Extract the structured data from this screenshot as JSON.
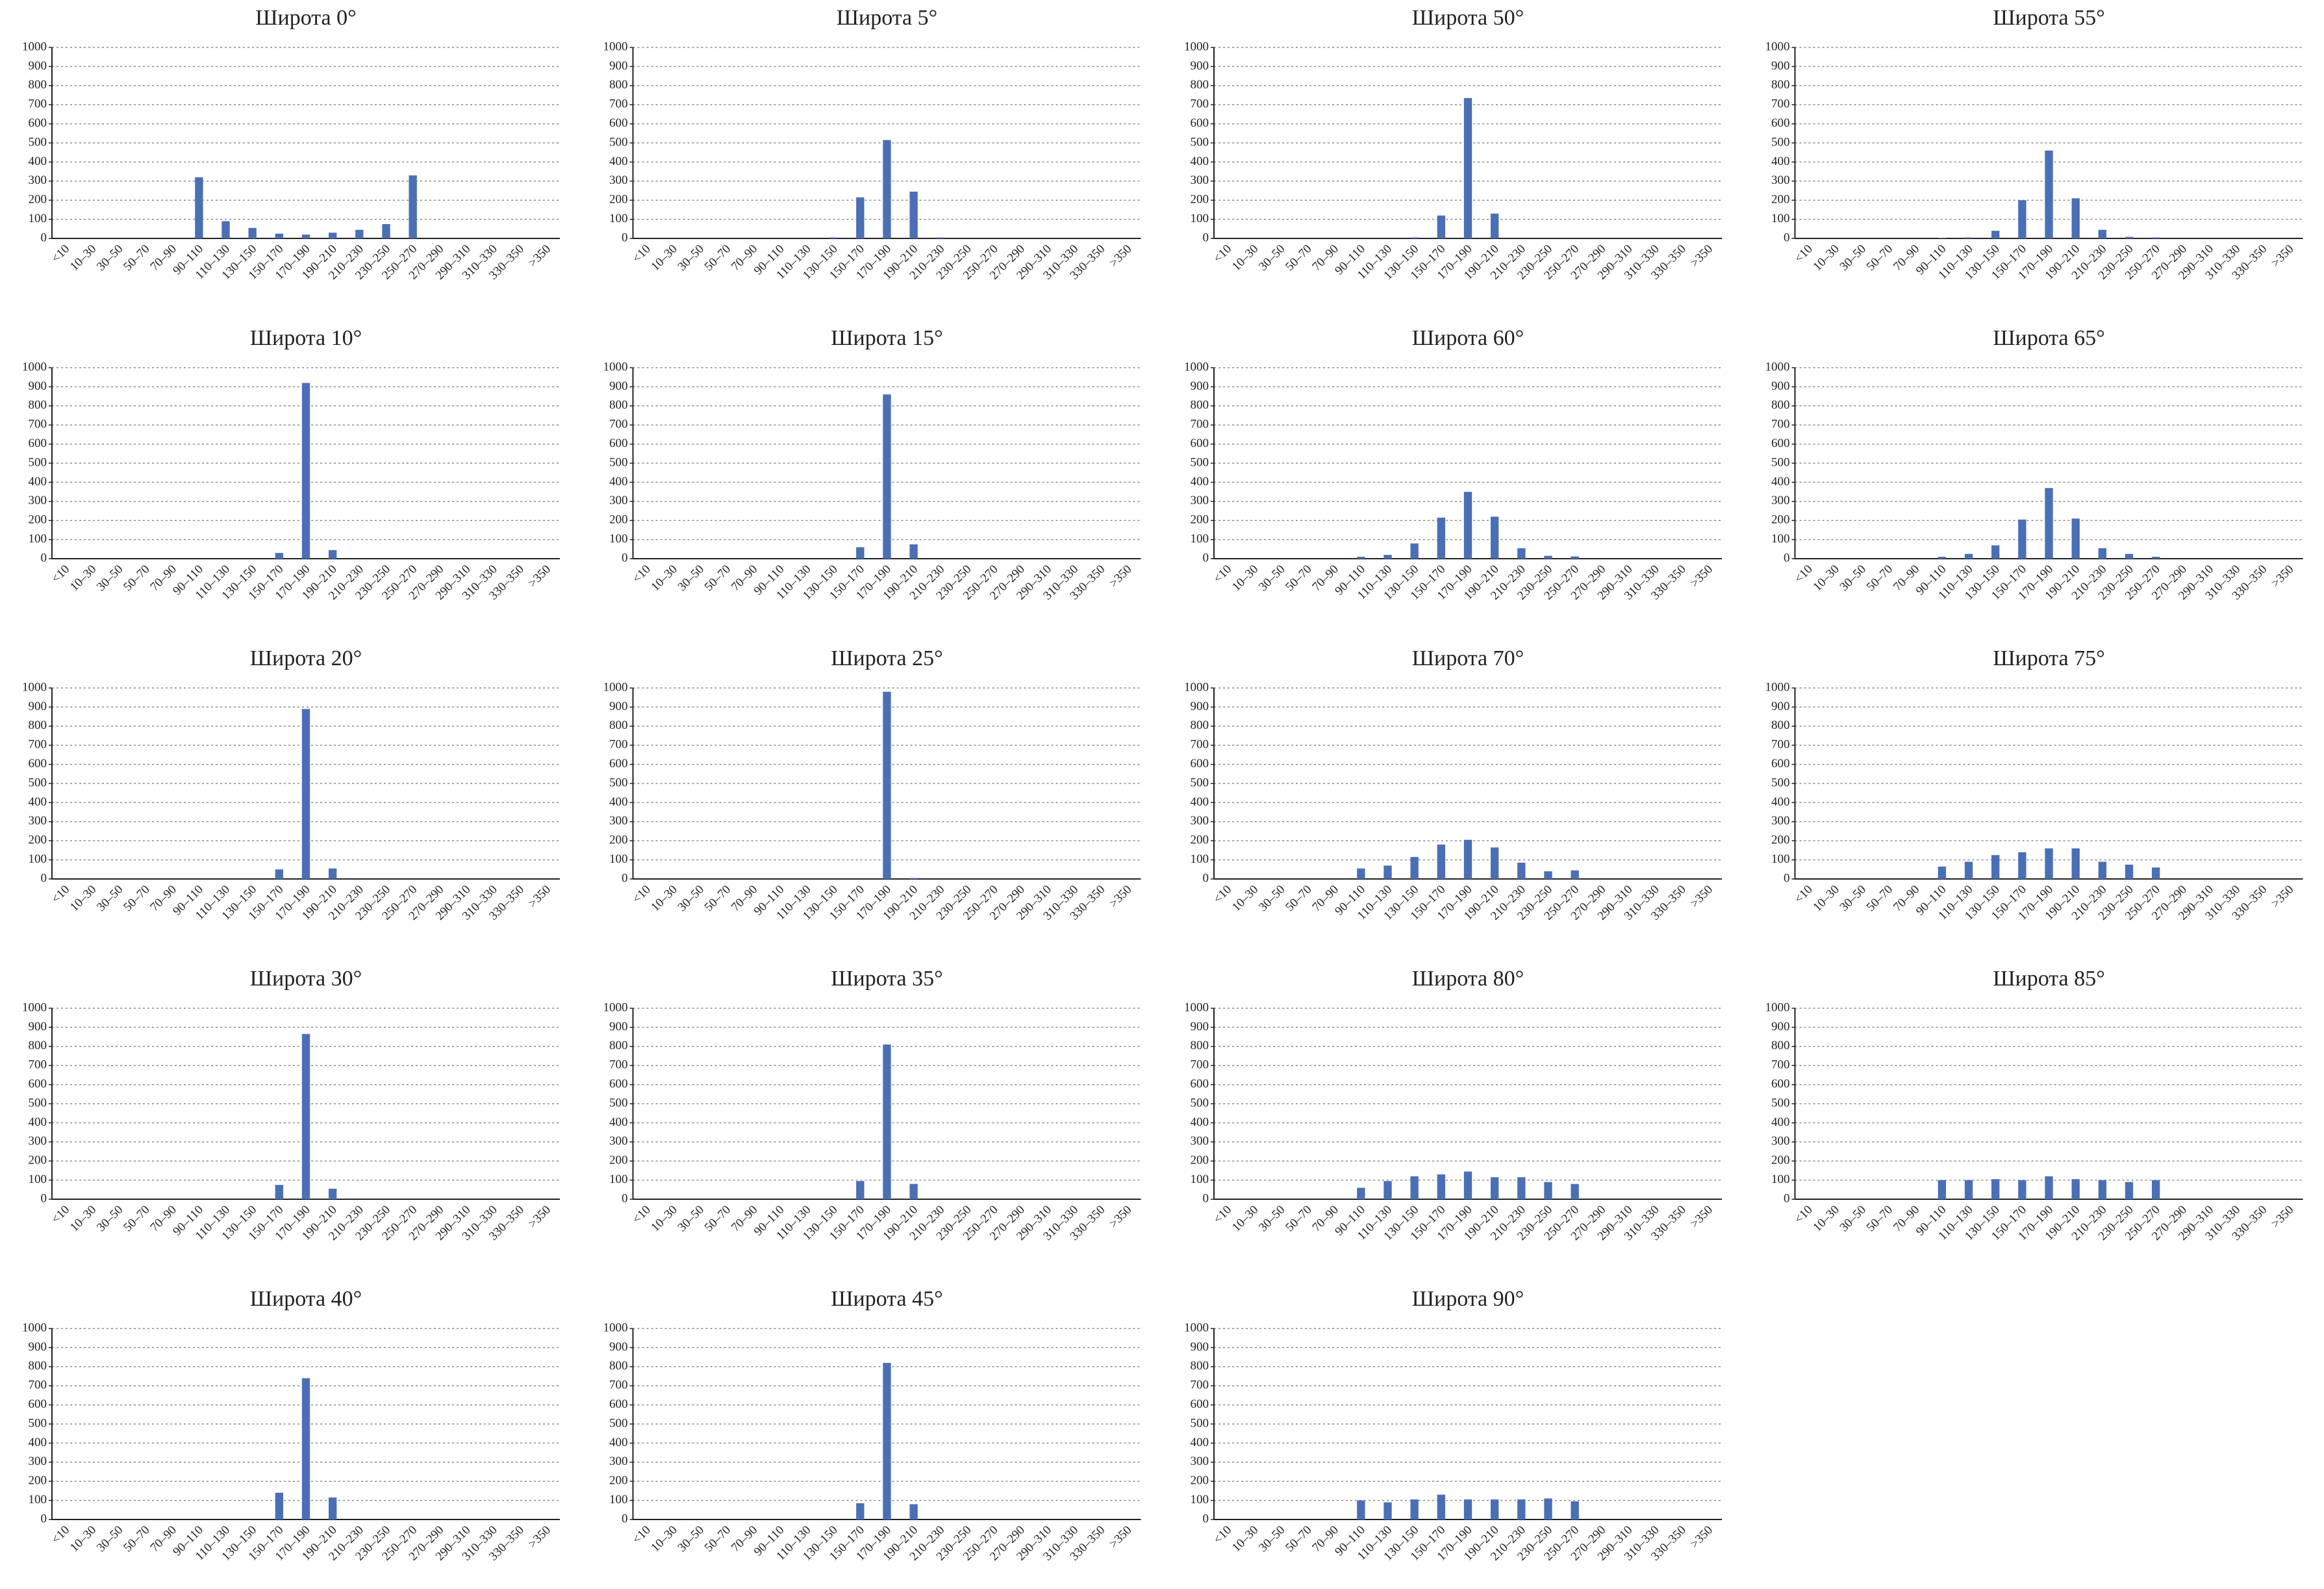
{
  "chart_data": [
    {
      "type": "bar",
      "title": "Широта 0°",
      "categories": [
        "<10",
        "10–30",
        "30–50",
        "50–70",
        "70–90",
        "90–110",
        "110–130",
        "130–150",
        "150–170",
        "170–190",
        "190–210",
        "210–230",
        "230–250",
        "250–270",
        "270–290",
        "290–310",
        "310–330",
        "330–350",
        ">350"
      ],
      "values": [
        0,
        0,
        0,
        0,
        0,
        320,
        90,
        55,
        25,
        20,
        30,
        45,
        75,
        330,
        0,
        0,
        0,
        0,
        0
      ],
      "color": "#4a6fb5",
      "ylim": [
        0,
        1000
      ],
      "yticks": [
        0,
        100,
        200,
        300,
        400,
        500,
        600,
        700,
        800,
        900,
        1000
      ],
      "grid": true
    },
    {
      "type": "bar",
      "title": "Широта 10°",
      "categories": [
        "<10",
        "10–30",
        "30–50",
        "50–70",
        "70–90",
        "90–110",
        "110–130",
        "130–150",
        "150–170",
        "170–190",
        "190–210",
        "210–230",
        "230–250",
        "250–270",
        "270–290",
        "290–310",
        "310–330",
        "330–350",
        ">350"
      ],
      "values": [
        0,
        0,
        0,
        0,
        0,
        0,
        0,
        0,
        30,
        920,
        45,
        0,
        0,
        0,
        0,
        0,
        0,
        0,
        0
      ],
      "color": "#4a6fb5",
      "ylim": [
        0,
        1000
      ],
      "yticks": [
        0,
        100,
        200,
        300,
        400,
        500,
        600,
        700,
        800,
        900,
        1000
      ],
      "grid": true
    },
    {
      "type": "bar",
      "title": "Широта 20°",
      "categories": [
        "<10",
        "10–30",
        "30–50",
        "50–70",
        "70–90",
        "90–110",
        "110–130",
        "130–150",
        "150–170",
        "170–190",
        "190–210",
        "210–230",
        "230–250",
        "250–270",
        "270–290",
        "290–310",
        "310–330",
        "330–350",
        ">350"
      ],
      "values": [
        0,
        0,
        0,
        0,
        0,
        0,
        0,
        0,
        50,
        890,
        55,
        0,
        0,
        0,
        0,
        0,
        0,
        0,
        0
      ],
      "color": "#4a6fb5",
      "ylim": [
        0,
        1000
      ],
      "yticks": [
        0,
        100,
        200,
        300,
        400,
        500,
        600,
        700,
        800,
        900,
        1000
      ],
      "grid": true
    },
    {
      "type": "bar",
      "title": "Широта 30°",
      "categories": [
        "<10",
        "10–30",
        "30–50",
        "50–70",
        "70–90",
        "90–110",
        "110–130",
        "130–150",
        "150–170",
        "170–190",
        "190–210",
        "210–230",
        "230–250",
        "250–270",
        "270–290",
        "290–310",
        "310–330",
        "330–350",
        ">350"
      ],
      "values": [
        0,
        0,
        0,
        0,
        0,
        0,
        0,
        0,
        75,
        865,
        55,
        0,
        0,
        0,
        0,
        0,
        0,
        0,
        0
      ],
      "color": "#4a6fb5",
      "ylim": [
        0,
        1000
      ],
      "yticks": [
        0,
        100,
        200,
        300,
        400,
        500,
        600,
        700,
        800,
        900,
        1000
      ],
      "grid": true
    },
    {
      "type": "bar",
      "title": "Широта 40°",
      "categories": [
        "<10",
        "10–30",
        "30–50",
        "50–70",
        "70–90",
        "90–110",
        "110–130",
        "130–150",
        "150–170",
        "170–190",
        "190–210",
        "210–230",
        "230–250",
        "250–270",
        "270–290",
        "290–310",
        "310–330",
        "330–350",
        ">350"
      ],
      "values": [
        0,
        0,
        0,
        0,
        0,
        0,
        0,
        0,
        140,
        740,
        115,
        0,
        0,
        0,
        0,
        0,
        0,
        0,
        0
      ],
      "color": "#4a6fb5",
      "ylim": [
        0,
        1000
      ],
      "yticks": [
        0,
        100,
        200,
        300,
        400,
        500,
        600,
        700,
        800,
        900,
        1000
      ],
      "grid": true
    },
    {
      "type": "bar",
      "title": "Широта 5°",
      "categories": [
        "<10",
        "10–30",
        "30–50",
        "50–70",
        "70–90",
        "90–110",
        "110–130",
        "130–150",
        "150–170",
        "170–190",
        "190–210",
        "210–230",
        "230–250",
        "250–270",
        "270–290",
        "290–310",
        "310–330",
        "330–350",
        ">350"
      ],
      "values": [
        0,
        0,
        0,
        0,
        0,
        0,
        0,
        5,
        215,
        515,
        245,
        5,
        0,
        0,
        0,
        0,
        0,
        0,
        0
      ],
      "color": "#4a6fb5",
      "ylim": [
        0,
        1000
      ],
      "yticks": [
        0,
        100,
        200,
        300,
        400,
        500,
        600,
        700,
        800,
        900,
        1000
      ],
      "grid": true
    },
    {
      "type": "bar",
      "title": "Широта 15°",
      "categories": [
        "<10",
        "10–30",
        "30–50",
        "50–70",
        "70–90",
        "90–110",
        "110–130",
        "130–150",
        "150–170",
        "170–190",
        "190–210",
        "210–230",
        "230–250",
        "250–270",
        "270–290",
        "290–310",
        "310–330",
        "330–350",
        ">350"
      ],
      "values": [
        0,
        0,
        0,
        0,
        0,
        0,
        0,
        0,
        60,
        860,
        75,
        0,
        0,
        0,
        0,
        0,
        0,
        0,
        0
      ],
      "color": "#4a6fb5",
      "ylim": [
        0,
        1000
      ],
      "yticks": [
        0,
        100,
        200,
        300,
        400,
        500,
        600,
        700,
        800,
        900,
        1000
      ],
      "grid": true
    },
    {
      "type": "bar",
      "title": "Широта 25°",
      "categories": [
        "<10",
        "10–30",
        "30–50",
        "50–70",
        "70–90",
        "90–110",
        "110–130",
        "130–150",
        "150–170",
        "170–190",
        "190–210",
        "210–230",
        "230–250",
        "250–270",
        "270–290",
        "290–310",
        "310–330",
        "330–350",
        ">350"
      ],
      "values": [
        0,
        0,
        0,
        0,
        0,
        0,
        0,
        0,
        0,
        980,
        5,
        0,
        0,
        0,
        0,
        0,
        0,
        0,
        0
      ],
      "color": "#4a6fb5",
      "ylim": [
        0,
        1000
      ],
      "yticks": [
        0,
        100,
        200,
        300,
        400,
        500,
        600,
        700,
        800,
        900,
        1000
      ],
      "grid": true
    },
    {
      "type": "bar",
      "title": "Широта 35°",
      "categories": [
        "<10",
        "10–30",
        "30–50",
        "50–70",
        "70–90",
        "90–110",
        "110–130",
        "130–150",
        "150–170",
        "170–190",
        "190–210",
        "210–230",
        "230–250",
        "250–270",
        "270–290",
        "290–310",
        "310–330",
        "330–350",
        ">350"
      ],
      "values": [
        0,
        0,
        0,
        0,
        0,
        0,
        0,
        0,
        95,
        810,
        80,
        0,
        0,
        0,
        0,
        0,
        0,
        0,
        0
      ],
      "color": "#4a6fb5",
      "ylim": [
        0,
        1000
      ],
      "yticks": [
        0,
        100,
        200,
        300,
        400,
        500,
        600,
        700,
        800,
        900,
        1000
      ],
      "grid": true
    },
    {
      "type": "bar",
      "title": "Широта 45°",
      "categories": [
        "<10",
        "10–30",
        "30–50",
        "50–70",
        "70–90",
        "90–110",
        "110–130",
        "130–150",
        "150–170",
        "170–190",
        "190–210",
        "210–230",
        "230–250",
        "250–270",
        "270–290",
        "290–310",
        "310–330",
        "330–350",
        ">350"
      ],
      "values": [
        0,
        0,
        0,
        0,
        0,
        0,
        0,
        0,
        85,
        820,
        80,
        0,
        0,
        0,
        0,
        0,
        0,
        0,
        0
      ],
      "color": "#4a6fb5",
      "ylim": [
        0,
        1000
      ],
      "yticks": [
        0,
        100,
        200,
        300,
        400,
        500,
        600,
        700,
        800,
        900,
        1000
      ],
      "grid": true
    },
    {
      "type": "bar",
      "title": "Широта 50°",
      "categories": [
        "<10",
        "10–30",
        "30–50",
        "50–70",
        "70–90",
        "90–110",
        "110–130",
        "130–150",
        "150–170",
        "170–190",
        "190–210",
        "210–230",
        "230–250",
        "250–270",
        "270–290",
        "290–310",
        "310–330",
        "330–350",
        ">350"
      ],
      "values": [
        0,
        0,
        0,
        0,
        0,
        0,
        0,
        5,
        120,
        735,
        130,
        0,
        0,
        0,
        0,
        0,
        0,
        0,
        0
      ],
      "color": "#4a6fb5",
      "ylim": [
        0,
        1000
      ],
      "yticks": [
        0,
        100,
        200,
        300,
        400,
        500,
        600,
        700,
        800,
        900,
        1000
      ],
      "grid": true
    },
    {
      "type": "bar",
      "title": "Широта 60°",
      "categories": [
        "<10",
        "10–30",
        "30–50",
        "50–70",
        "70–90",
        "90–110",
        "110–130",
        "130–150",
        "150–170",
        "170–190",
        "190–210",
        "210–230",
        "230–250",
        "250–270",
        "270–290",
        "290–310",
        "310–330",
        "330–350",
        ">350"
      ],
      "values": [
        0,
        0,
        0,
        0,
        0,
        10,
        20,
        80,
        215,
        350,
        220,
        55,
        15,
        12,
        0,
        0,
        0,
        0,
        0
      ],
      "color": "#4a6fb5",
      "ylim": [
        0,
        1000
      ],
      "yticks": [
        0,
        100,
        200,
        300,
        400,
        500,
        600,
        700,
        800,
        900,
        1000
      ],
      "grid": true
    },
    {
      "type": "bar",
      "title": "Широта 70°",
      "categories": [
        "<10",
        "10–30",
        "30–50",
        "50–70",
        "70–90",
        "90–110",
        "110–130",
        "130–150",
        "150–170",
        "170–190",
        "190–210",
        "210–230",
        "230–250",
        "250–270",
        "270–290",
        "290–310",
        "310–330",
        "330–350",
        ">350"
      ],
      "values": [
        0,
        0,
        0,
        0,
        0,
        55,
        70,
        115,
        180,
        205,
        165,
        85,
        40,
        45,
        0,
        0,
        0,
        0,
        0
      ],
      "color": "#4a6fb5",
      "ylim": [
        0,
        1000
      ],
      "yticks": [
        0,
        100,
        200,
        300,
        400,
        500,
        600,
        700,
        800,
        900,
        1000
      ],
      "grid": true
    },
    {
      "type": "bar",
      "title": "Широта 80°",
      "categories": [
        "<10",
        "10–30",
        "30–50",
        "50–70",
        "70–90",
        "90–110",
        "110–130",
        "130–150",
        "150–170",
        "170–190",
        "190–210",
        "210–230",
        "230–250",
        "250–270",
        "270–290",
        "290–310",
        "310–330",
        "330–350",
        ">350"
      ],
      "values": [
        0,
        0,
        0,
        0,
        0,
        60,
        95,
        120,
        130,
        145,
        115,
        115,
        90,
        80,
        0,
        0,
        0,
        0,
        0
      ],
      "color": "#4a6fb5",
      "ylim": [
        0,
        1000
      ],
      "yticks": [
        0,
        100,
        200,
        300,
        400,
        500,
        600,
        700,
        800,
        900,
        1000
      ],
      "grid": true
    },
    {
      "type": "bar",
      "title": "Широта 90°",
      "categories": [
        "<10",
        "10–30",
        "30–50",
        "50–70",
        "70–90",
        "90–110",
        "110–130",
        "130–150",
        "150–170",
        "170–190",
        "190–210",
        "210–230",
        "230–250",
        "250–270",
        "270–290",
        "290–310",
        "310–330",
        "330–350",
        ">350"
      ],
      "values": [
        0,
        0,
        0,
        0,
        0,
        100,
        90,
        105,
        130,
        105,
        105,
        105,
        110,
        95,
        0,
        0,
        0,
        0,
        0
      ],
      "color": "#4a6fb5",
      "ylim": [
        0,
        1000
      ],
      "yticks": [
        0,
        100,
        200,
        300,
        400,
        500,
        600,
        700,
        800,
        900,
        1000
      ],
      "grid": true
    },
    {
      "type": "bar",
      "title": "Широта 55°",
      "categories": [
        "<10",
        "10–30",
        "30–50",
        "50–70",
        "70–90",
        "90–110",
        "110–130",
        "130–150",
        "150–170",
        "170–190",
        "190–210",
        "210–230",
        "230–250",
        "250–270",
        "270–290",
        "290–310",
        "310–330",
        "330–350",
        ">350"
      ],
      "values": [
        0,
        0,
        0,
        0,
        0,
        3,
        5,
        40,
        200,
        460,
        210,
        45,
        8,
        5,
        0,
        0,
        0,
        0,
        0
      ],
      "color": "#4a6fb5",
      "ylim": [
        0,
        1000
      ],
      "yticks": [
        0,
        100,
        200,
        300,
        400,
        500,
        600,
        700,
        800,
        900,
        1000
      ],
      "grid": true
    },
    {
      "type": "bar",
      "title": "Широта 65°",
      "categories": [
        "<10",
        "10–30",
        "30–50",
        "50–70",
        "70–90",
        "90–110",
        "110–130",
        "130–150",
        "150–170",
        "170–190",
        "190–210",
        "210–230",
        "230–250",
        "250–270",
        "270–290",
        "290–310",
        "310–330",
        "330–350",
        ">350"
      ],
      "values": [
        0,
        0,
        0,
        0,
        0,
        10,
        25,
        70,
        205,
        370,
        210,
        55,
        25,
        10,
        0,
        0,
        0,
        0,
        0
      ],
      "color": "#4a6fb5",
      "ylim": [
        0,
        1000
      ],
      "yticks": [
        0,
        100,
        200,
        300,
        400,
        500,
        600,
        700,
        800,
        900,
        1000
      ],
      "grid": true
    },
    {
      "type": "bar",
      "title": "Широта 75°",
      "categories": [
        "<10",
        "10–30",
        "30–50",
        "50–70",
        "70–90",
        "90–110",
        "110–130",
        "130–150",
        "150–170",
        "170–190",
        "190–210",
        "210–230",
        "230–250",
        "250–270",
        "270–290",
        "290–310",
        "310–330",
        "330–350",
        ">350"
      ],
      "values": [
        0,
        0,
        0,
        0,
        0,
        65,
        90,
        125,
        140,
        160,
        160,
        90,
        75,
        60,
        0,
        0,
        0,
        0,
        0
      ],
      "color": "#4a6fb5",
      "ylim": [
        0,
        1000
      ],
      "yticks": [
        0,
        100,
        200,
        300,
        400,
        500,
        600,
        700,
        800,
        900,
        1000
      ],
      "grid": true
    },
    {
      "type": "bar",
      "title": "Широта 85°",
      "categories": [
        "<10",
        "10–30",
        "30–50",
        "50–70",
        "70–90",
        "90–110",
        "110–130",
        "130–150",
        "150–170",
        "170–190",
        "190–210",
        "210–230",
        "230–250",
        "250–270",
        "270–290",
        "290–310",
        "310–330",
        "330–350",
        ">350"
      ],
      "values": [
        0,
        0,
        0,
        0,
        0,
        100,
        100,
        105,
        100,
        120,
        105,
        100,
        90,
        100,
        0,
        0,
        0,
        0,
        0
      ],
      "color": "#4a6fb5",
      "ylim": [
        0,
        1000
      ],
      "yticks": [
        0,
        100,
        200,
        300,
        400,
        500,
        600,
        700,
        800,
        900,
        1000
      ],
      "grid": true
    }
  ]
}
